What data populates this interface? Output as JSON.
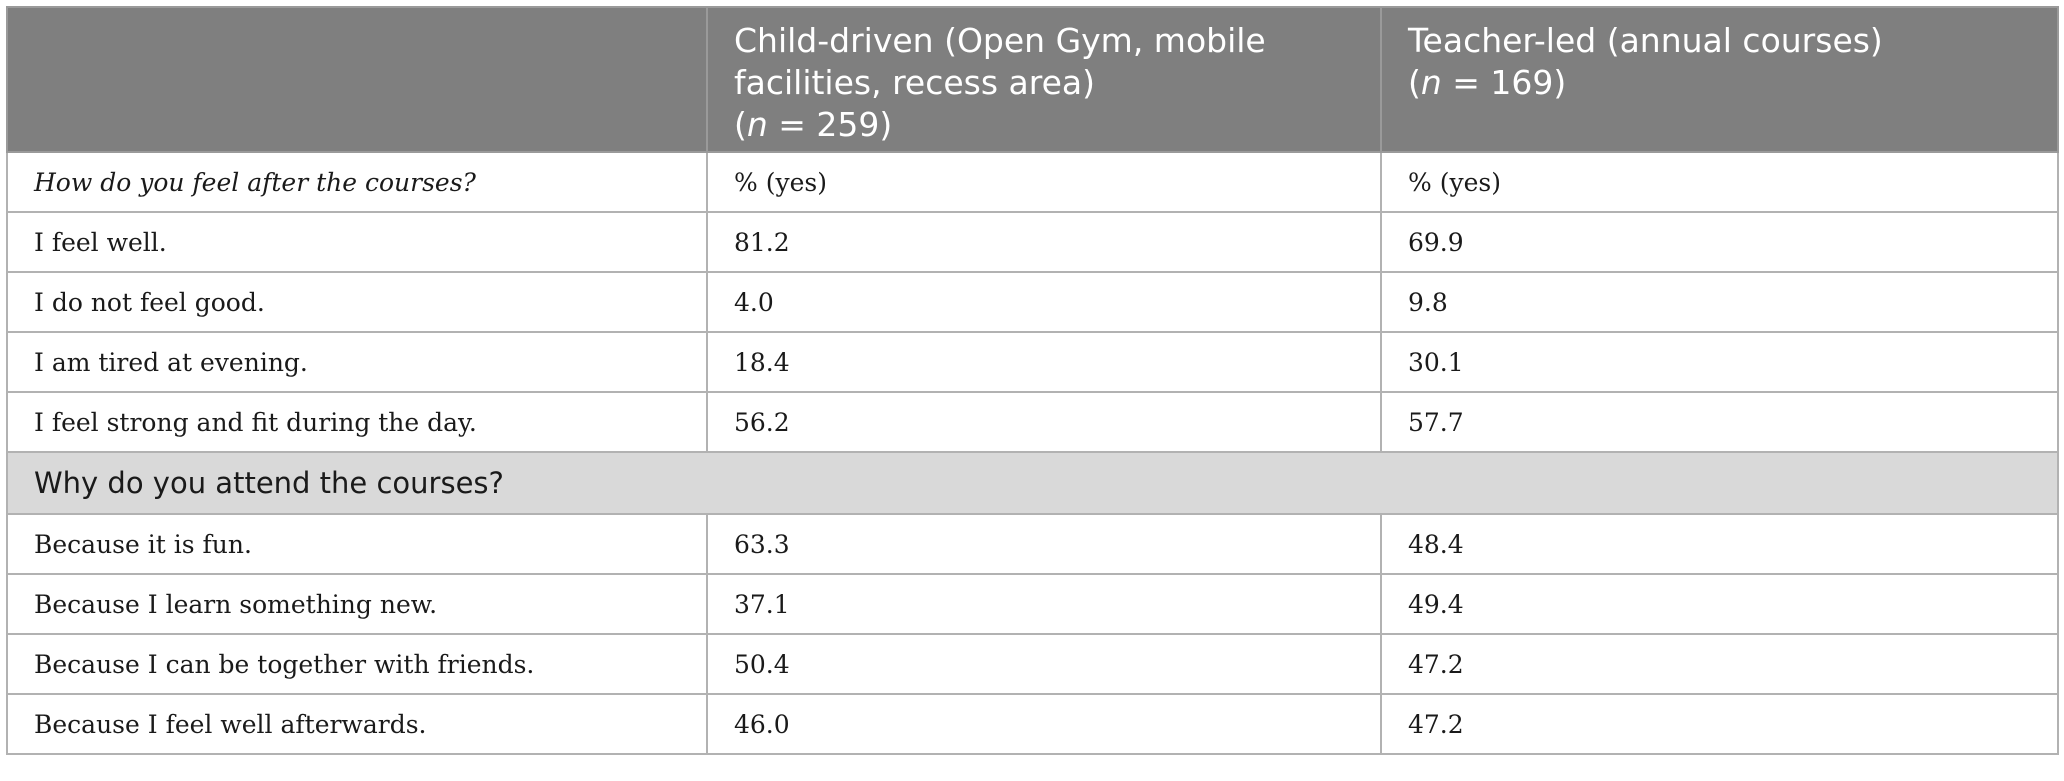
{
  "header": {
    "col1": "",
    "col2_line1": "Child-driven (Open Gym, mobile",
    "col2_line2": "facilities, recess area)",
    "col2_n_prefix": "(",
    "col2_n_italic": "n",
    "col2_n_value": " = 259)",
    "col3_line1": "Teacher-led (annual courses)",
    "col3_n_prefix": "(",
    "col3_n_italic": "n",
    "col3_n_value": " = 169)"
  },
  "section1": {
    "question": "How do you feel after the courses?",
    "unit_col2": "% (yes)",
    "unit_col3": "% (yes)",
    "rows": [
      {
        "label": "I feel well.",
        "child": "81.2",
        "teacher": "69.9"
      },
      {
        "label": "I do not feel good.",
        "child": "4.0",
        "teacher": "9.8"
      },
      {
        "label": "I am tired at evening.",
        "child": "18.4",
        "teacher": "30.1"
      },
      {
        "label": "I feel strong and fit during the day.",
        "child": "56.2",
        "teacher": "57.7"
      }
    ]
  },
  "section2": {
    "question": "Why do you attend the courses?",
    "rows": [
      {
        "label": "Because it is fun.",
        "child": "63.3",
        "teacher": "48.4"
      },
      {
        "label": "Because I learn something new.",
        "child": "37.1",
        "teacher": "49.4"
      },
      {
        "label": "Because I can be together with friends.",
        "child": "50.4",
        "teacher": "47.2"
      },
      {
        "label": "Because I feel well afterwards.",
        "child": "46.0",
        "teacher": "47.2"
      }
    ]
  },
  "colors": {
    "header_bg": "#7f7f7f",
    "section_bg": "#d9d9d9",
    "border": "#b2b2b2"
  }
}
